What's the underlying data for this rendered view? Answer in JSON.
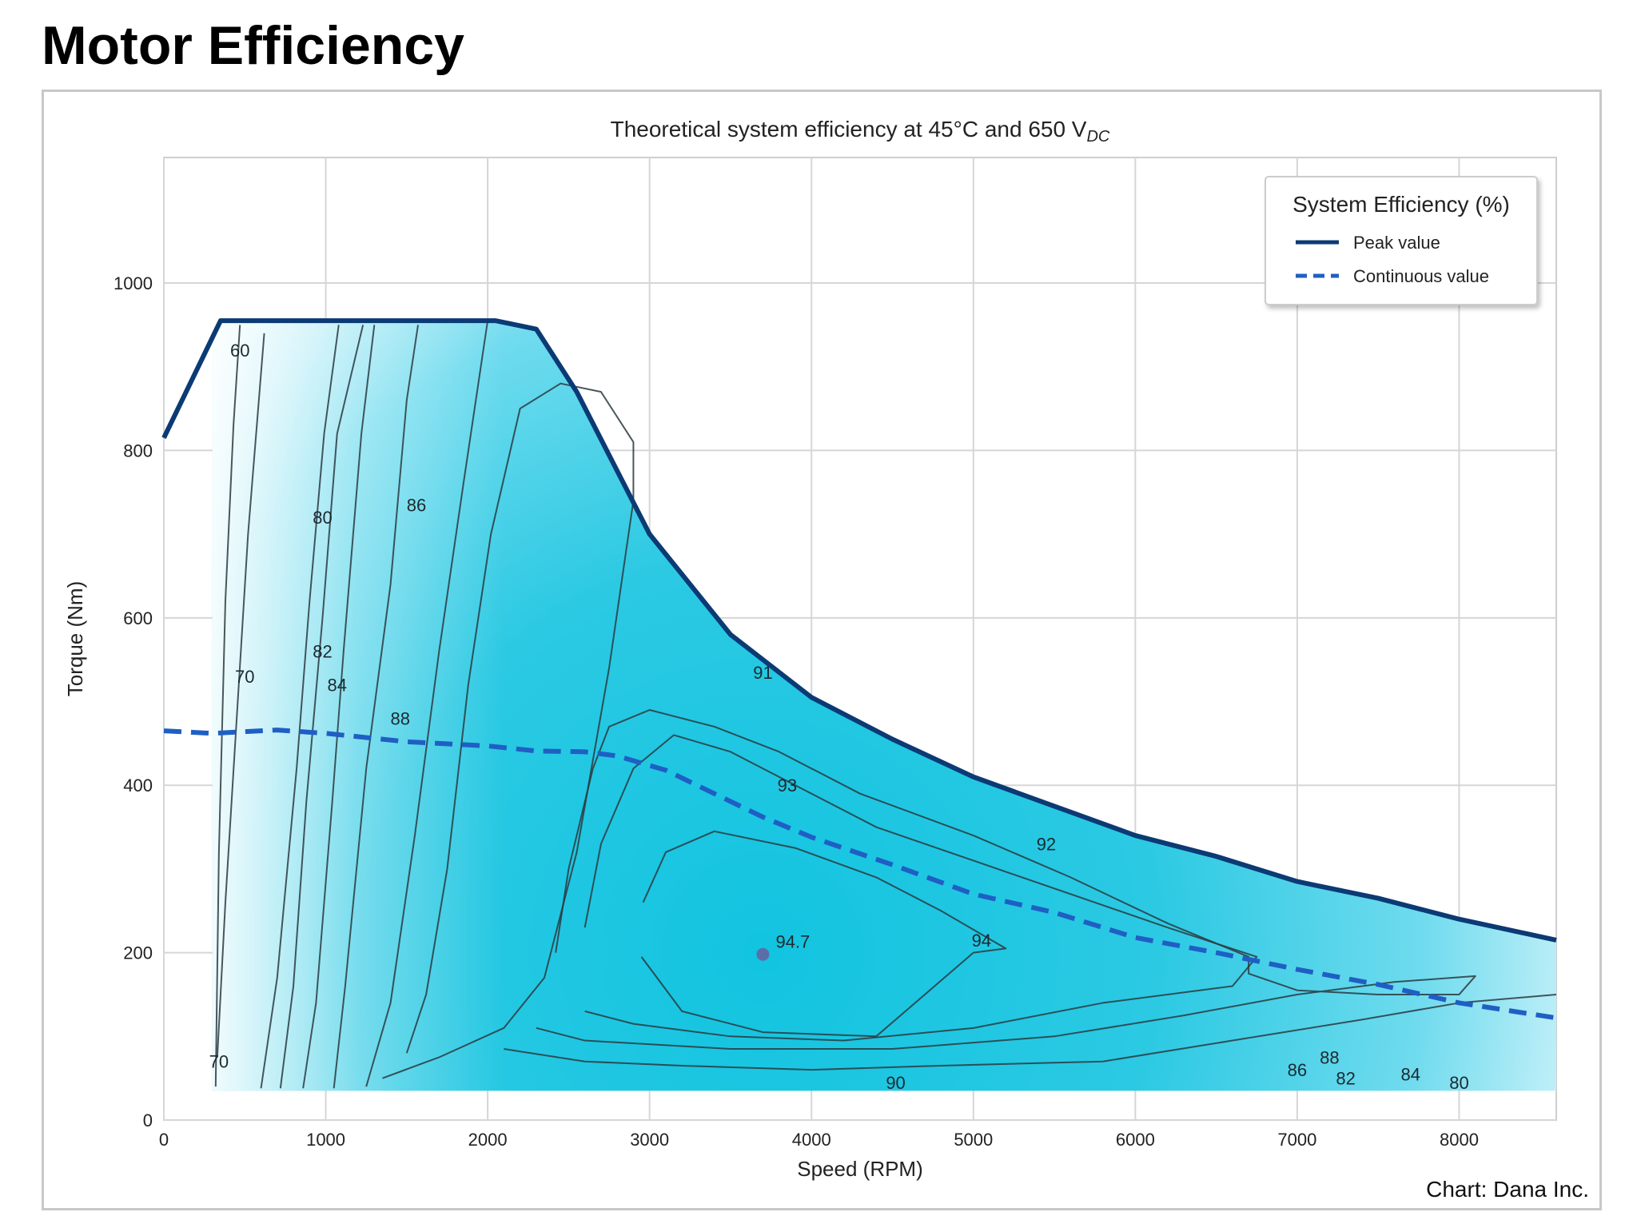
{
  "page": {
    "title": "Motor Efficiency",
    "credit": "Chart: Dana Inc."
  },
  "chart_data": {
    "type": "contour",
    "title": "Theoretical system efficiency at 45°C and 650 V",
    "title_subscript": "DC",
    "xlabel": "Speed (RPM)",
    "ylabel": "Torque (Nm)",
    "xlim": [
      0,
      8600
    ],
    "ylim": [
      0,
      1150
    ],
    "x_ticks": [
      0,
      1000,
      2000,
      3000,
      4000,
      5000,
      6000,
      7000,
      8000
    ],
    "y_ticks": [
      0,
      200,
      400,
      600,
      800,
      1000
    ],
    "grid": true,
    "legend": {
      "title": "System Efficiency (%)",
      "placement": "top-right",
      "entries": [
        "Peak value",
        "Continuous value"
      ]
    },
    "colors": {
      "fill_max": "#12c4e0",
      "fill_min": "#e8f9fd",
      "peak_line": "#0b3a74",
      "continuous_line": "#1f5fc4",
      "contour_line": "#2a3a40",
      "grid": "#d6d6d6"
    },
    "series": [
      {
        "name": "Peak value",
        "style": "solid",
        "x": [
          0,
          350,
          2050,
          2300,
          2550,
          3000,
          3500,
          4000,
          4500,
          5000,
          5500,
          6000,
          6500,
          7000,
          7500,
          8000,
          8600
        ],
        "y": [
          815,
          955,
          955,
          945,
          870,
          700,
          580,
          505,
          455,
          410,
          375,
          340,
          315,
          285,
          265,
          240,
          215
        ]
      },
      {
        "name": "Continuous value",
        "style": "dashed",
        "x": [
          0,
          300,
          700,
          1000,
          1500,
          2000,
          2300,
          2600,
          2800,
          3100,
          3400,
          3700,
          4000,
          4500,
          5000,
          5500,
          6000,
          6500,
          7000,
          7500,
          8000,
          8600
        ],
        "y": [
          465,
          462,
          466,
          462,
          452,
          447,
          441,
          440,
          435,
          418,
          390,
          362,
          338,
          305,
          270,
          248,
          218,
          200,
          180,
          162,
          140,
          122
        ]
      }
    ],
    "contour_levels": [
      60,
      70,
      80,
      82,
      84,
      86,
      88,
      90,
      91,
      92,
      93,
      94
    ],
    "contour_labels": [
      {
        "text": "60",
        "x": 470,
        "y": 920
      },
      {
        "text": "70",
        "x": 500,
        "y": 530
      },
      {
        "text": "70",
        "x": 340,
        "y": 70
      },
      {
        "text": "80",
        "x": 980,
        "y": 720
      },
      {
        "text": "82",
        "x": 980,
        "y": 560
      },
      {
        "text": "84",
        "x": 1070,
        "y": 520
      },
      {
        "text": "86",
        "x": 1560,
        "y": 735
      },
      {
        "text": "88",
        "x": 1460,
        "y": 480
      },
      {
        "text": "90",
        "x": 4520,
        "y": 45
      },
      {
        "text": "91",
        "x": 3700,
        "y": 535
      },
      {
        "text": "92",
        "x": 5450,
        "y": 330
      },
      {
        "text": "93",
        "x": 3850,
        "y": 400
      },
      {
        "text": "94",
        "x": 5050,
        "y": 215
      },
      {
        "text": "86",
        "x": 7000,
        "y": 60
      },
      {
        "text": "88",
        "x": 7200,
        "y": 75
      },
      {
        "text": "82",
        "x": 7300,
        "y": 50
      },
      {
        "text": "84",
        "x": 7700,
        "y": 55
      },
      {
        "text": "80",
        "x": 8000,
        "y": 45
      }
    ],
    "peak_point": {
      "x": 3700,
      "y": 198,
      "label": "94.7"
    }
  }
}
